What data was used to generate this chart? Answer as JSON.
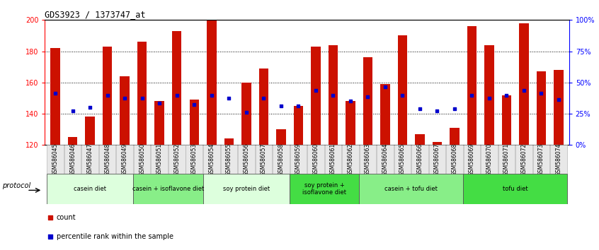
{
  "title": "GDS3923 / 1373747_at",
  "samples": [
    "GSM586045",
    "GSM586046",
    "GSM586047",
    "GSM586048",
    "GSM586049",
    "GSM586050",
    "GSM586051",
    "GSM586052",
    "GSM586053",
    "GSM586054",
    "GSM586055",
    "GSM586056",
    "GSM586057",
    "GSM586058",
    "GSM586059",
    "GSM586060",
    "GSM586061",
    "GSM586062",
    "GSM586063",
    "GSM586064",
    "GSM586065",
    "GSM586066",
    "GSM586067",
    "GSM586068",
    "GSM586069",
    "GSM586070",
    "GSM586071",
    "GSM586072",
    "GSM586073",
    "GSM586074"
  ],
  "counts": [
    182,
    125,
    138,
    183,
    164,
    186,
    148,
    193,
    149,
    200,
    124,
    160,
    169,
    130,
    145,
    183,
    184,
    148,
    176,
    159,
    190,
    127,
    122,
    131,
    196,
    184,
    152,
    198,
    167,
    168
  ],
  "percentile_ranks": [
    153,
    142,
    144,
    152,
    150,
    150,
    147,
    152,
    146,
    152,
    150,
    141,
    150,
    145,
    145,
    155,
    152,
    148,
    151,
    157,
    152,
    143,
    142,
    143,
    152,
    150,
    152,
    155,
    153,
    149
  ],
  "ymin": 120,
  "ymax": 200,
  "yticks": [
    120,
    140,
    160,
    180,
    200
  ],
  "bar_color": "#CC1100",
  "dot_color": "#0000CC",
  "groups": [
    {
      "label": "casein diet",
      "start": 0,
      "end": 5,
      "color": "#ddffdd"
    },
    {
      "label": "casein + isoflavone diet",
      "start": 5,
      "end": 9,
      "color": "#88ee88"
    },
    {
      "label": "soy protein diet",
      "start": 9,
      "end": 14,
      "color": "#ddffdd"
    },
    {
      "label": "soy protein +\nisoflavone diet",
      "start": 14,
      "end": 18,
      "color": "#44dd44"
    },
    {
      "label": "casein + tofu diet",
      "start": 18,
      "end": 24,
      "color": "#88ee88"
    },
    {
      "label": "tofu diet",
      "start": 24,
      "end": 30,
      "color": "#44dd44"
    }
  ],
  "protocol_label": "protocol",
  "legend_count": "count",
  "legend_percentile": "percentile rank within the sample"
}
